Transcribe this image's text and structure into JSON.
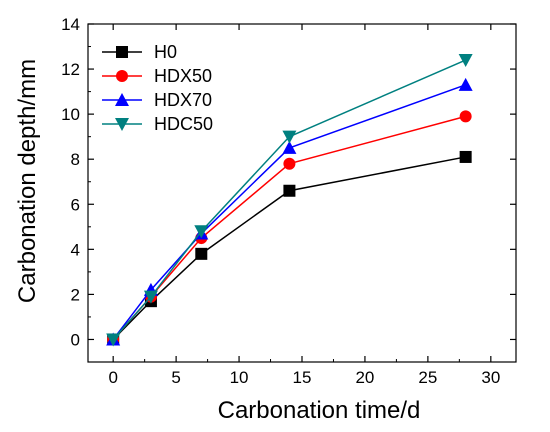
{
  "chart_data": {
    "type": "line",
    "title": "",
    "xlabel": "Carbonation time/d",
    "ylabel": "Carbonation depth/mm",
    "xlim": [
      -2,
      32
    ],
    "ylim": [
      -1,
      14
    ],
    "xticks": [
      0,
      5,
      10,
      15,
      20,
      25,
      30
    ],
    "yticks": [
      0,
      2,
      4,
      6,
      8,
      10,
      12,
      14
    ],
    "grid": false,
    "legend_position": "top-left",
    "x": [
      0,
      3,
      7,
      14,
      28
    ],
    "series": [
      {
        "name": "H0",
        "values": [
          0,
          1.7,
          3.8,
          6.6,
          8.1
        ],
        "color": "#000000",
        "marker": "square"
      },
      {
        "name": "HDX50",
        "values": [
          0,
          1.9,
          4.5,
          7.8,
          9.9
        ],
        "color": "#ff0000",
        "marker": "circle"
      },
      {
        "name": "HDX70",
        "values": [
          0,
          2.2,
          4.7,
          8.5,
          11.3
        ],
        "color": "#0000ff",
        "marker": "triangle-up"
      },
      {
        "name": "HDC50",
        "values": [
          0,
          1.9,
          4.8,
          9.0,
          12.4
        ],
        "color": "#008080",
        "marker": "triangle-down"
      }
    ]
  }
}
